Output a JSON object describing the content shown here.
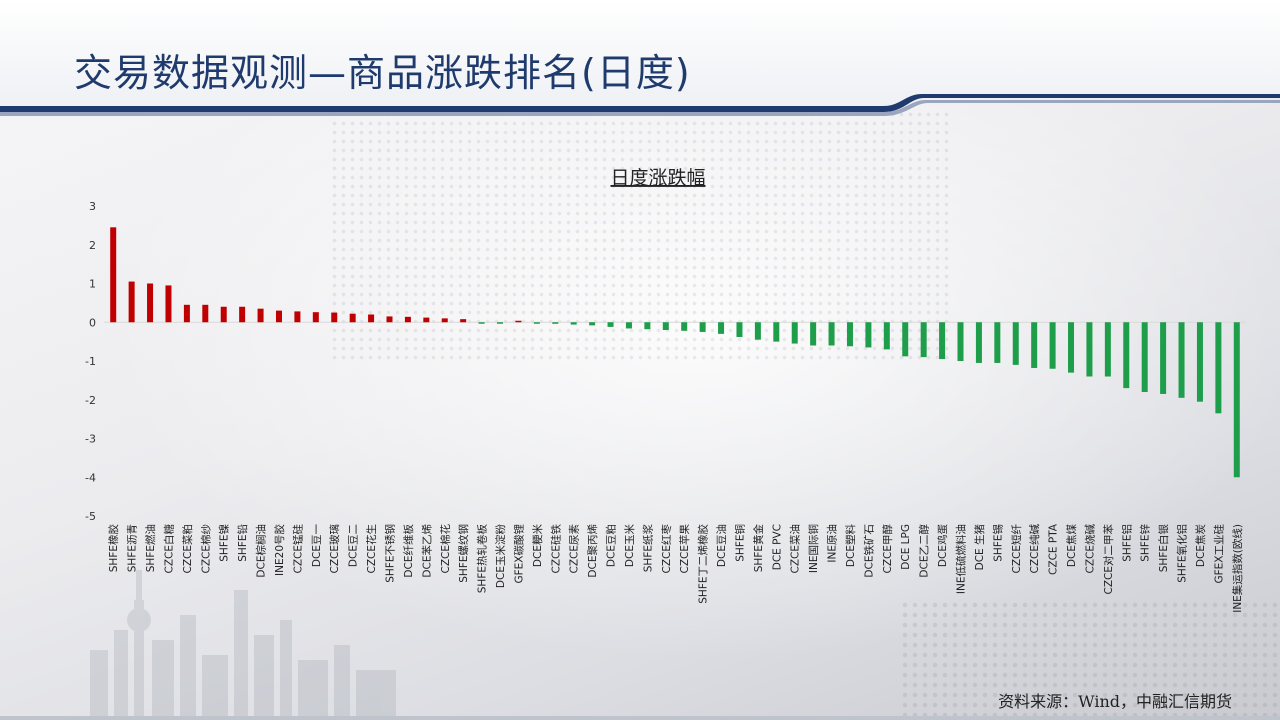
{
  "page": {
    "title": "交易数据观测—商品涨跌排名(日度)",
    "source": "资料来源：Wind，中融汇信期货"
  },
  "colors": {
    "up": "#c00000",
    "down": "#1e9e4a",
    "title": "#1f3a6d",
    "band": "#1f3a6d"
  },
  "chart_data": {
    "type": "bar",
    "title": "日度涨跌幅",
    "ylim": [
      -5,
      3
    ],
    "yticks": [
      3,
      2,
      1,
      0,
      -1,
      -2,
      -3,
      -4,
      -5
    ],
    "grid": false,
    "legend": "none",
    "categories": [
      "SHFE橡胶",
      "SHFE沥青",
      "SHFE燃油",
      "CZCE白糖",
      "CZCE菜粕",
      "CZCE棉纱",
      "SHFE镍",
      "SHFE铅",
      "DCE棕榈油",
      "INE20号胶",
      "CZCE锰硅",
      "DCE豆一",
      "CZCE玻璃",
      "DCE豆二",
      "CZCE花生",
      "SHFE不锈钢",
      "DCE纤维板",
      "DCE苯乙烯",
      "CZCE棉花",
      "SHFE螺纹钢",
      "SHFE热轧卷板",
      "DCE玉米淀粉",
      "GFEX碳酸锂",
      "DCE粳米",
      "CZCE硅铁",
      "CZCE尿素",
      "DCE聚丙烯",
      "DCE豆粕",
      "DCE玉米",
      "SHFE纸浆",
      "CZCE红枣",
      "CZCE苹果",
      "SHFE丁二烯橡胶",
      "DCE豆油",
      "SHFE铜",
      "SHFE黄金",
      "DCE PVC",
      "CZCE菜油",
      "INE国际铜",
      "INE原油",
      "DCE塑料",
      "DCE铁矿石",
      "CZCE甲醇",
      "DCE LPG",
      "DCE乙二醇",
      "DCE鸡蛋",
      "INE低硫燃料油",
      "DCE 生猪",
      "SHFE锡",
      "CZCE短纤",
      "CZCE纯碱",
      "CZCE PTA",
      "DCE焦煤",
      "CZCE烧碱",
      "CZCE对二甲苯",
      "SHFE铝",
      "SHFE锌",
      "SHFE白银",
      "SHFE氧化铝",
      "DCE焦炭",
      "GFEX工业硅",
      "INE集运指数(欧线)"
    ],
    "values": [
      2.45,
      1.05,
      1.0,
      0.95,
      0.45,
      0.45,
      0.4,
      0.4,
      0.35,
      0.3,
      0.28,
      0.26,
      0.25,
      0.22,
      0.2,
      0.15,
      0.14,
      0.12,
      0.1,
      0.08,
      -0.03,
      -0.01,
      0.0,
      -0.03,
      -0.04,
      -0.06,
      -0.08,
      -0.12,
      -0.16,
      -0.18,
      -0.2,
      -0.22,
      -0.25,
      -0.3,
      -0.38,
      -0.45,
      -0.5,
      -0.55,
      -0.6,
      -0.6,
      -0.62,
      -0.65,
      -0.7,
      -0.88,
      -0.9,
      -0.95,
      -1.0,
      -1.05,
      -1.05,
      -1.1,
      -1.18,
      -1.2,
      -1.3,
      -1.4,
      -1.4,
      -1.7,
      -1.8,
      -1.85,
      -1.95,
      -2.05,
      -2.35,
      -4.0
    ]
  }
}
